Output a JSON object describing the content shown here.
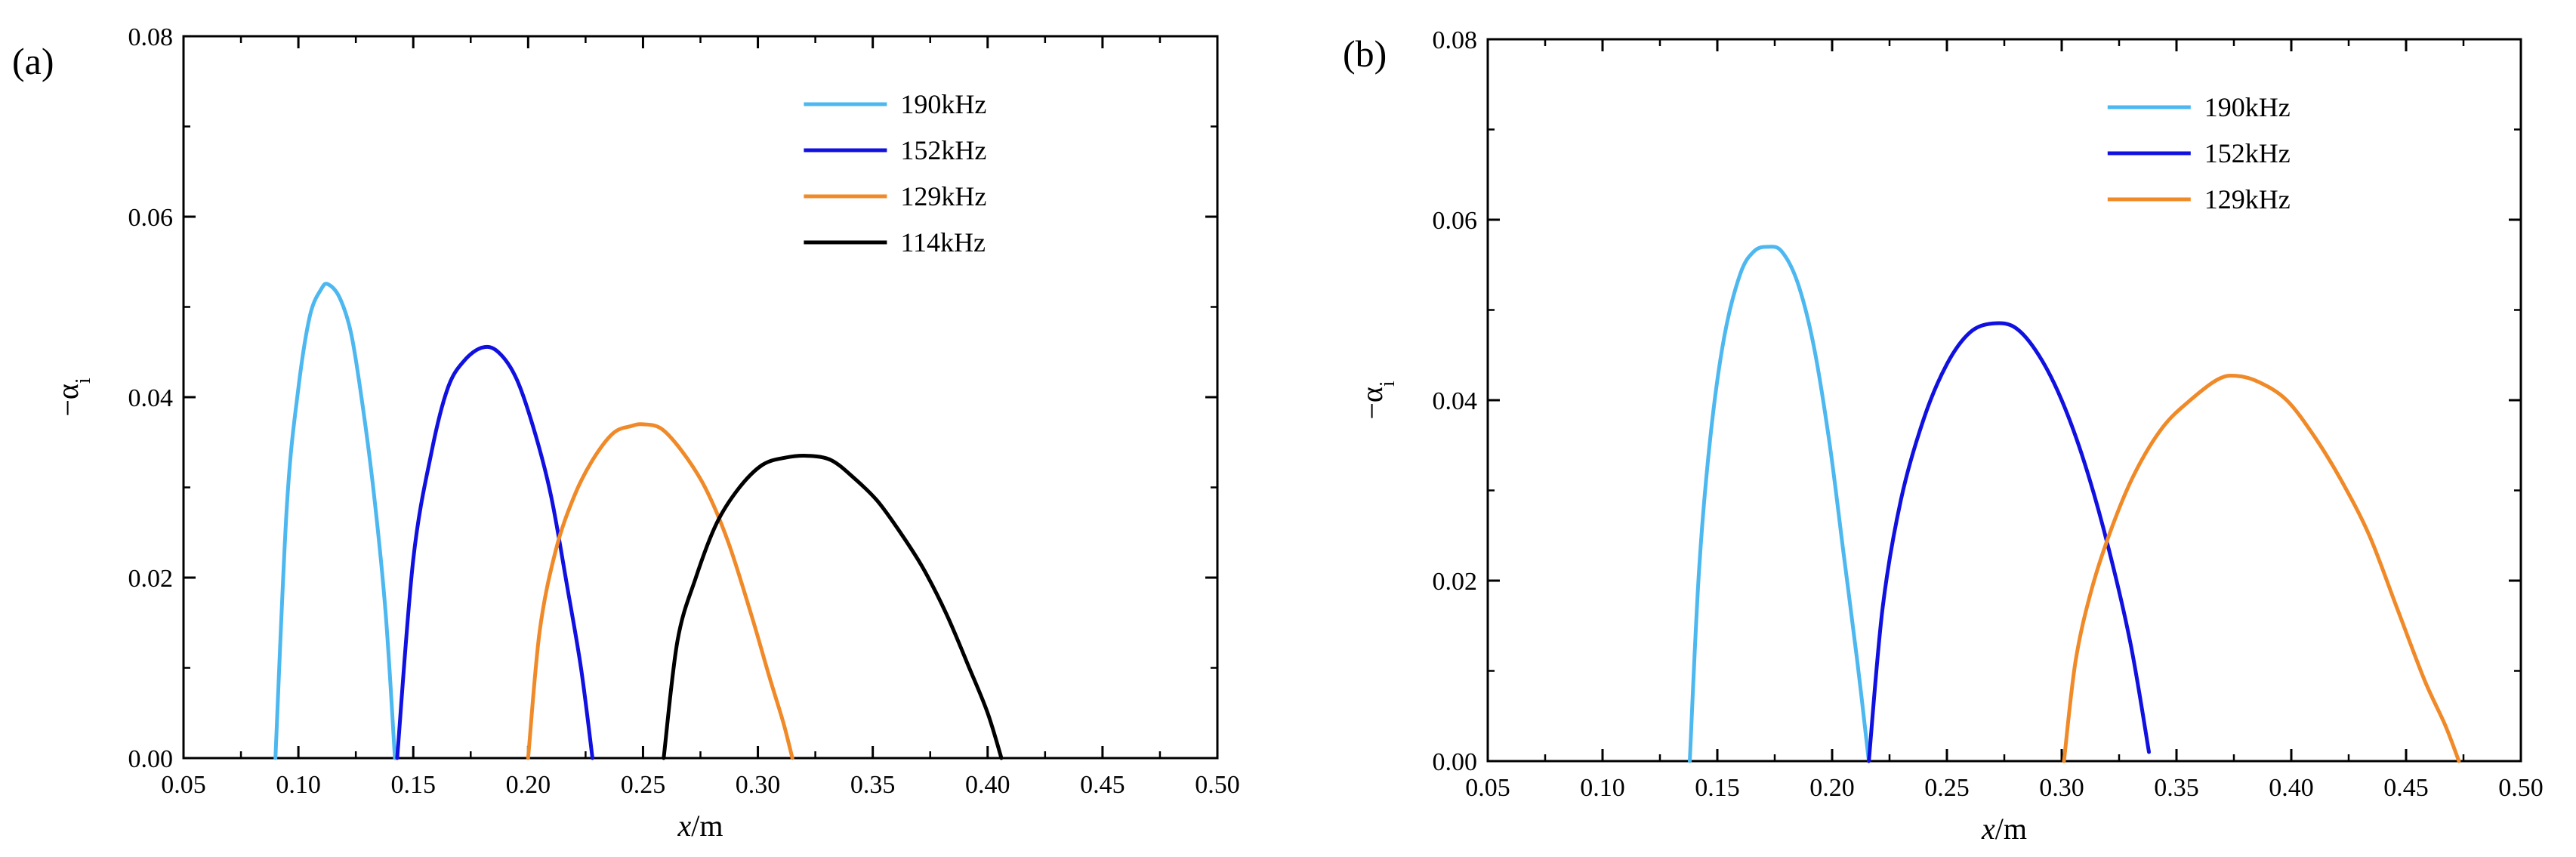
{
  "chart_data": [
    {
      "panel_label": "(a)",
      "type": "line",
      "xlabel": {
        "var": "x",
        "unit": "/m"
      },
      "ylabel": {
        "main": "−α",
        "sub": "i"
      },
      "xlim": [
        0.05,
        0.5
      ],
      "ylim": [
        0.0,
        0.08
      ],
      "xticks": [
        0.05,
        0.1,
        0.15,
        0.2,
        0.25,
        0.3,
        0.35,
        0.4,
        0.45,
        0.5
      ],
      "yticks": [
        0.0,
        0.02,
        0.04,
        0.06,
        0.08
      ],
      "xtick_labels": [
        "0.05",
        "0.10",
        "0.15",
        "0.20",
        "0.25",
        "0.30",
        "0.35",
        "0.40",
        "0.45",
        "0.50"
      ],
      "ytick_labels": [
        "0.00",
        "0.02",
        "0.04",
        "0.06",
        "0.08"
      ],
      "legend_position": "top-right",
      "series": [
        {
          "name": "190kHz",
          "color": "#4db8f0",
          "x": [
            0.09,
            0.095,
            0.1,
            0.105,
            0.11,
            0.113,
            0.118,
            0.123,
            0.128,
            0.133,
            0.138,
            0.142
          ],
          "y": [
            0.0,
            0.028,
            0.041,
            0.049,
            0.052,
            0.0525,
            0.051,
            0.047,
            0.039,
            0.029,
            0.016,
            0.0
          ]
        },
        {
          "name": "152kHz",
          "color": "#1010e0",
          "x": [
            0.143,
            0.15,
            0.158,
            0.165,
            0.172,
            0.18,
            0.187,
            0.195,
            0.203,
            0.21,
            0.217,
            0.223,
            0.228
          ],
          "y": [
            0.0,
            0.022,
            0.034,
            0.041,
            0.044,
            0.0455,
            0.045,
            0.042,
            0.036,
            0.029,
            0.019,
            0.01,
            0.0
          ]
        },
        {
          "name": "129kHz",
          "color": "#f08a28",
          "x": [
            0.2,
            0.205,
            0.212,
            0.22,
            0.228,
            0.237,
            0.245,
            0.25,
            0.258,
            0.267,
            0.277,
            0.287,
            0.297,
            0.305,
            0.311,
            0.315
          ],
          "y": [
            0.0,
            0.014,
            0.023,
            0.029,
            0.033,
            0.036,
            0.0368,
            0.037,
            0.0365,
            0.034,
            0.03,
            0.024,
            0.016,
            0.009,
            0.004,
            0.0
          ]
        },
        {
          "name": "114kHz",
          "color": "#000000",
          "x": [
            0.259,
            0.265,
            0.273,
            0.282,
            0.292,
            0.302,
            0.312,
            0.322,
            0.332,
            0.342,
            0.352,
            0.362,
            0.372,
            0.382,
            0.392,
            0.4,
            0.406
          ],
          "y": [
            0.0,
            0.013,
            0.02,
            0.026,
            0.03,
            0.0325,
            0.0333,
            0.0335,
            0.033,
            0.031,
            0.0285,
            0.025,
            0.021,
            0.016,
            0.01,
            0.005,
            0.0
          ]
        }
      ]
    },
    {
      "panel_label": "(b)",
      "type": "line",
      "xlabel": {
        "var": "x",
        "unit": "/m"
      },
      "ylabel": {
        "main": "−α",
        "sub": "i"
      },
      "xlim": [
        0.05,
        0.5
      ],
      "ylim": [
        0.0,
        0.08
      ],
      "xticks": [
        0.05,
        0.1,
        0.15,
        0.2,
        0.25,
        0.3,
        0.35,
        0.4,
        0.45,
        0.5
      ],
      "yticks": [
        0.0,
        0.02,
        0.04,
        0.06,
        0.08
      ],
      "xtick_labels": [
        "0.05",
        "0.10",
        "0.15",
        "0.20",
        "0.25",
        "0.30",
        "0.35",
        "0.40",
        "0.45",
        "0.50"
      ],
      "ytick_labels": [
        "0.00",
        "0.02",
        "0.04",
        "0.06",
        "0.08"
      ],
      "legend_position": "top-right",
      "series": [
        {
          "name": "190kHz",
          "color": "#4db8f0",
          "x": [
            0.138,
            0.142,
            0.147,
            0.153,
            0.16,
            0.166,
            0.172,
            0.178,
            0.185,
            0.192,
            0.199,
            0.205,
            0.211,
            0.216
          ],
          "y": [
            0.0,
            0.021,
            0.036,
            0.047,
            0.054,
            0.0565,
            0.057,
            0.0565,
            0.053,
            0.046,
            0.035,
            0.023,
            0.011,
            0.0
          ]
        },
        {
          "name": "152kHz",
          "color": "#1010e0",
          "x": [
            0.216,
            0.222,
            0.23,
            0.24,
            0.25,
            0.26,
            0.27,
            0.28,
            0.29,
            0.3,
            0.31,
            0.32,
            0.33,
            0.338
          ],
          "y": [
            0.0,
            0.017,
            0.029,
            0.038,
            0.044,
            0.0475,
            0.0485,
            0.048,
            0.045,
            0.04,
            0.033,
            0.024,
            0.013,
            0.001
          ]
        },
        {
          "name": "129kHz",
          "color": "#f08a28",
          "x": [
            0.301,
            0.306,
            0.313,
            0.322,
            0.332,
            0.344,
            0.356,
            0.368,
            0.376,
            0.386,
            0.398,
            0.41,
            0.422,
            0.434,
            0.446,
            0.458,
            0.467,
            0.473
          ],
          "y": [
            0.0,
            0.011,
            0.019,
            0.026,
            0.032,
            0.037,
            0.04,
            0.0423,
            0.0427,
            0.042,
            0.04,
            0.036,
            0.031,
            0.025,
            0.017,
            0.009,
            0.004,
            0.0
          ]
        }
      ]
    }
  ]
}
